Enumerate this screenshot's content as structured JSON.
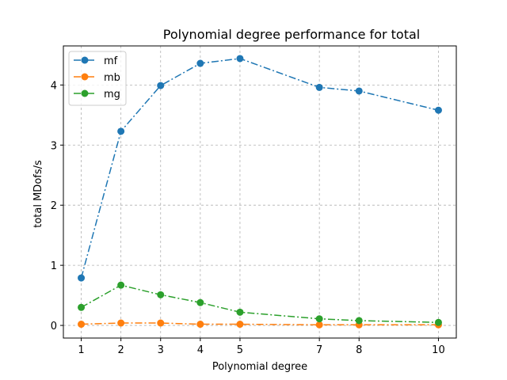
{
  "chart_data": {
    "type": "line",
    "title": "Polynomial degree performance for total",
    "xlabel": "Polynomial degree",
    "ylabel": "total MDofs/s",
    "x": [
      1,
      2,
      3,
      4,
      5,
      7,
      8,
      10
    ],
    "xticks": [
      1,
      2,
      3,
      4,
      5,
      7,
      8,
      10
    ],
    "yticks": [
      0,
      1,
      2,
      3,
      4
    ],
    "xlim": [
      0.55,
      10.45
    ],
    "ylim": [
      -0.21,
      4.65
    ],
    "grid": true,
    "legend_position": "top-left",
    "series": [
      {
        "name": "mf",
        "color": "#1f77b4",
        "values": [
          0.79,
          3.23,
          3.99,
          4.36,
          4.44,
          3.96,
          3.9,
          3.58
        ]
      },
      {
        "name": "mb",
        "color": "#ff7f0e",
        "values": [
          0.02,
          0.04,
          0.04,
          0.02,
          0.02,
          0.01,
          0.01,
          0.01
        ]
      },
      {
        "name": "mg",
        "color": "#2ca02c",
        "values": [
          0.3,
          0.67,
          0.51,
          0.38,
          0.22,
          0.11,
          0.08,
          0.05
        ]
      }
    ]
  }
}
